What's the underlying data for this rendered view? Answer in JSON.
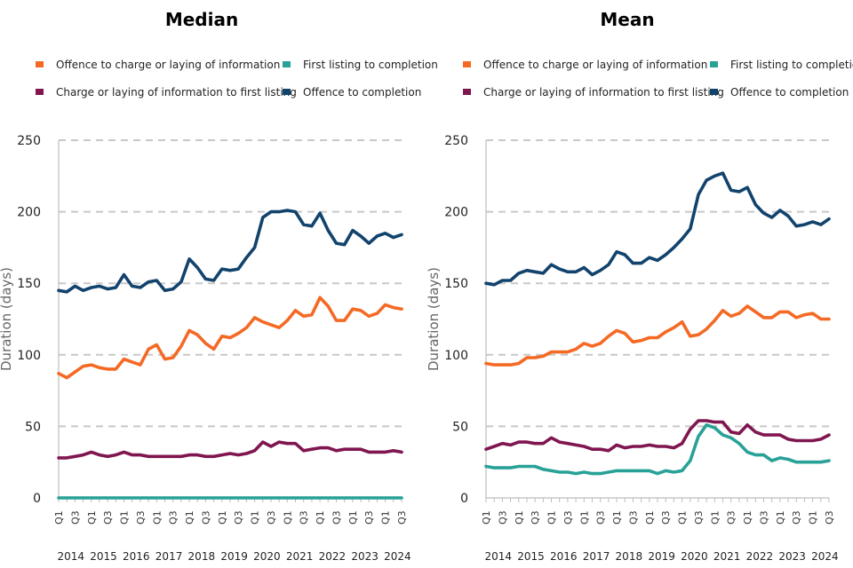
{
  "chart_data": [
    {
      "type": "line",
      "title": "Median",
      "xlabel": "",
      "ylabel": "Duration (days)",
      "ylim": [
        0,
        250
      ],
      "yticks": [
        0,
        50,
        100,
        150,
        200,
        250
      ],
      "grid": true,
      "legend_position": "top",
      "x_quarter_labels": [
        "Q1",
        "Q3",
        "Q1",
        "Q3",
        "Q1",
        "Q3",
        "Q1",
        "Q3",
        "Q1",
        "Q3",
        "Q1",
        "Q3",
        "Q1",
        "Q3",
        "Q1",
        "Q3",
        "Q1",
        "Q3",
        "Q1",
        "Q3",
        "Q1",
        "Q3"
      ],
      "x_year_labels": [
        "2014",
        "2015",
        "2016",
        "2017",
        "2018",
        "2019",
        "2020",
        "2021",
        "2022",
        "2023",
        "2024"
      ],
      "x_start": "2014 Q1",
      "series": [
        {
          "name": "Offence to charge or laying of information",
          "color": "#f46a25",
          "values": [
            87,
            84,
            88,
            92,
            93,
            91,
            90,
            90,
            97,
            95,
            93,
            104,
            107,
            97,
            98,
            106,
            117,
            114,
            108,
            104,
            113,
            112,
            115,
            119,
            126,
            123,
            121,
            119,
            124,
            131,
            127,
            128,
            140,
            134,
            124,
            124,
            132,
            131,
            127,
            129,
            135,
            133,
            132
          ]
        },
        {
          "name": "First listing to completion",
          "color": "#28a197",
          "values": [
            0,
            0,
            0,
            0,
            0,
            0,
            0,
            0,
            0,
            0,
            0,
            0,
            0,
            0,
            0,
            0,
            0,
            0,
            0,
            0,
            0,
            0,
            0,
            0,
            0,
            0,
            0,
            0,
            0,
            0,
            0,
            0,
            0,
            0,
            0,
            0,
            0,
            0,
            0,
            0,
            0,
            0,
            0
          ]
        },
        {
          "name": "Charge or laying of information to first listing",
          "color": "#801650",
          "values": [
            28,
            28,
            29,
            30,
            32,
            30,
            29,
            30,
            32,
            30,
            30,
            29,
            29,
            29,
            29,
            29,
            30,
            30,
            29,
            29,
            30,
            31,
            30,
            31,
            33,
            39,
            36,
            39,
            38,
            38,
            33,
            34,
            35,
            35,
            33,
            34,
            34,
            34,
            32,
            32,
            32,
            33,
            32
          ]
        },
        {
          "name": "Offence to completion",
          "color": "#12436d",
          "values": [
            145,
            144,
            148,
            145,
            147,
            148,
            146,
            147,
            156,
            148,
            147,
            151,
            152,
            145,
            146,
            151,
            167,
            161,
            153,
            152,
            160,
            159,
            160,
            168,
            175,
            196,
            200,
            200,
            201,
            200,
            191,
            190,
            199,
            187,
            178,
            177,
            187,
            183,
            178,
            183,
            185,
            182,
            184
          ]
        }
      ]
    },
    {
      "type": "line",
      "title": "Mean",
      "xlabel": "",
      "ylabel": "Duration (days)",
      "ylim": [
        0,
        250
      ],
      "yticks": [
        0,
        50,
        100,
        150,
        200,
        250
      ],
      "grid": true,
      "legend_position": "top",
      "x_quarter_labels": [
        "Q1",
        "Q3",
        "Q1",
        "Q3",
        "Q1",
        "Q3",
        "Q1",
        "Q3",
        "Q1",
        "Q3",
        "Q1",
        "Q3",
        "Q1",
        "Q3",
        "Q1",
        "Q3",
        "Q1",
        "Q3",
        "Q1",
        "Q3",
        "Q1",
        "Q3"
      ],
      "x_year_labels": [
        "2014",
        "2015",
        "2016",
        "2017",
        "2018",
        "2019",
        "2020",
        "2021",
        "2022",
        "2023",
        "2024"
      ],
      "x_start": "2014 Q1",
      "series": [
        {
          "name": "Offence to charge or laying of information",
          "color": "#f46a25",
          "values": [
            94,
            93,
            93,
            93,
            94,
            98,
            98,
            99,
            102,
            102,
            102,
            104,
            108,
            106,
            108,
            113,
            117,
            115,
            109,
            110,
            112,
            112,
            116,
            119,
            123,
            113,
            114,
            118,
            124,
            131,
            127,
            129,
            134,
            130,
            126,
            126,
            130,
            130,
            126,
            128,
            129,
            125,
            125
          ]
        },
        {
          "name": "First listing to completion",
          "color": "#28a197",
          "values": [
            22,
            21,
            21,
            21,
            22,
            22,
            22,
            20,
            19,
            18,
            18,
            17,
            18,
            17,
            17,
            18,
            19,
            19,
            19,
            19,
            19,
            17,
            19,
            18,
            19,
            26,
            43,
            51,
            49,
            44,
            42,
            38,
            32,
            30,
            30,
            26,
            28,
            27,
            25,
            25,
            25,
            25,
            26
          ]
        },
        {
          "name": "Charge or laying of information to first listing",
          "color": "#801650",
          "values": [
            34,
            36,
            38,
            37,
            39,
            39,
            38,
            38,
            42,
            39,
            38,
            37,
            36,
            34,
            34,
            33,
            37,
            35,
            36,
            36,
            37,
            36,
            36,
            35,
            38,
            48,
            54,
            54,
            53,
            53,
            46,
            45,
            51,
            46,
            44,
            44,
            44,
            41,
            40,
            40,
            40,
            41,
            44
          ]
        },
        {
          "name": "Offence to completion",
          "color": "#12436d",
          "values": [
            150,
            149,
            152,
            152,
            157,
            159,
            158,
            157,
            163,
            160,
            158,
            158,
            161,
            156,
            159,
            163,
            172,
            170,
            164,
            164,
            168,
            166,
            170,
            175,
            181,
            188,
            212,
            222,
            225,
            227,
            215,
            214,
            217,
            205,
            199,
            196,
            201,
            197,
            190,
            191,
            193,
            191,
            195
          ]
        }
      ]
    }
  ]
}
